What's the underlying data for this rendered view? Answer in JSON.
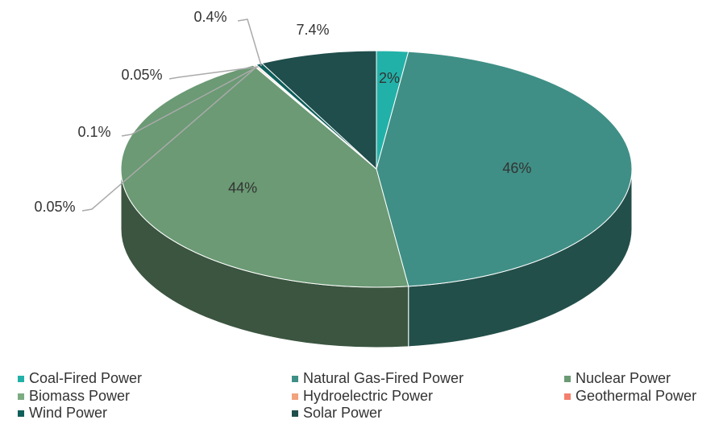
{
  "chart_data": {
    "type": "pie3d",
    "categories": [
      "Coal-Fired Power",
      "Natural Gas-Fired Power",
      "Nuclear Power",
      "Biomass Power",
      "Hydroelectric Power",
      "Geothermal Power",
      "Wind Power",
      "Solar Power"
    ],
    "values": [
      2,
      46,
      44,
      0.05,
      0.1,
      0.05,
      0.4,
      7.4
    ],
    "value_labels": [
      "2%",
      "46%",
      "44%",
      "0.05%",
      "0.1%",
      "0.05%",
      "0.4%",
      "7.4%"
    ],
    "colors": [
      "#22b1a8",
      "#3f8f86",
      "#6b9a74",
      "#7dab82",
      "#f2a27c",
      "#f47f6e",
      "#0f5f5b",
      "#1f4e4c"
    ],
    "legend": "bottom"
  }
}
